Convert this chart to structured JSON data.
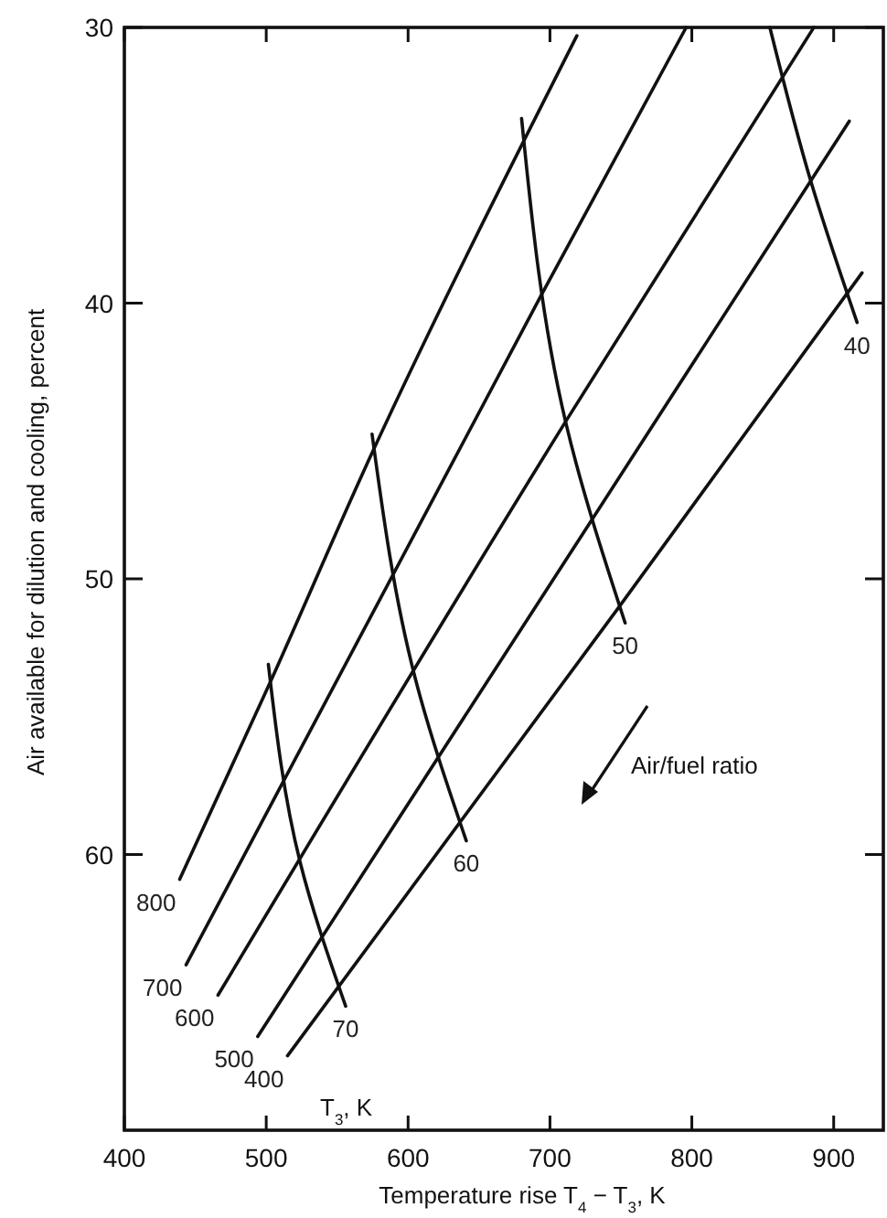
{
  "chart_data": {
    "type": "line",
    "xlabel": "Temperature rise T$_{4}$ − T$_{3}$, K",
    "ylabel": "Air available for dilution and cooling, percent",
    "xlim": [
      400,
      935
    ],
    "ylim": [
      70,
      30
    ],
    "xticks": [
      400,
      500,
      600,
      700,
      800,
      900
    ],
    "yticks": [
      30,
      40,
      50,
      60
    ],
    "grid": false,
    "marker": "none",
    "line_style": "solid",
    "annotations": [
      "T$_{3}$, K",
      "Air/fuel ratio"
    ],
    "series": [
      {
        "name": "800",
        "color": "#111111",
        "x": [
          439,
          501.5,
          574,
          719
        ],
        "values": [
          60.9,
          53.9,
          45.5,
          30.3
        ]
      },
      {
        "name": "700",
        "color": "#111111",
        "x": [
          443.5,
          694,
          796
        ],
        "values": [
          64.0,
          39.7,
          30
        ]
      },
      {
        "name": "600",
        "color": "#111111",
        "x": [
          466,
          711,
          886
        ],
        "values": [
          65.1,
          44.3,
          30
        ]
      },
      {
        "name": "500",
        "color": "#111111",
        "x": [
          494,
          729,
          911
        ],
        "values": [
          66.6,
          47.9,
          33.4
        ]
      },
      {
        "name": "400",
        "color": "#111111",
        "x": [
          515,
          749,
          920
        ],
        "values": [
          67.3,
          51.0,
          38.9
        ]
      },
      {
        "name": "40",
        "color": "#111111",
        "x": [
          855,
          884,
          916.5
        ],
        "values": [
          30,
          35.6,
          40.7
        ]
      },
      {
        "name": "50",
        "color": "#111111",
        "x": [
          680,
          711,
          753
        ],
        "values": [
          33.3,
          44.3,
          51.6
        ]
      },
      {
        "name": "60",
        "color": "#111111",
        "x": [
          574.6,
          605,
          641
        ],
        "values": [
          44.75,
          53.6,
          59.5
        ]
      },
      {
        "name": "70",
        "color": "#111111",
        "x": [
          501.5,
          524,
          556
        ],
        "values": [
          53.1,
          60.3,
          65.5
        ]
      }
    ]
  }
}
